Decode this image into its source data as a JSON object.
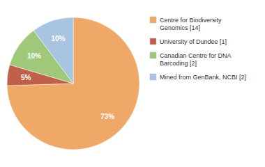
{
  "chart_data": {
    "type": "pie",
    "categories": [
      "Centre for Biodiversity\nGenomics [14]",
      "University of Dundee [1]",
      "Canadian Centre for DNA\nBarcoding [2]",
      "Mined from GenBank, NCBI [2]"
    ],
    "values": [
      73,
      5,
      10,
      10
    ],
    "value_labels": [
      "73%",
      "5%",
      "10%",
      "10%"
    ],
    "colors": [
      "#f0a868",
      "#c0604a",
      "#9fc87a",
      "#a8c4e0"
    ],
    "data_labels": true,
    "legend": "right"
  }
}
